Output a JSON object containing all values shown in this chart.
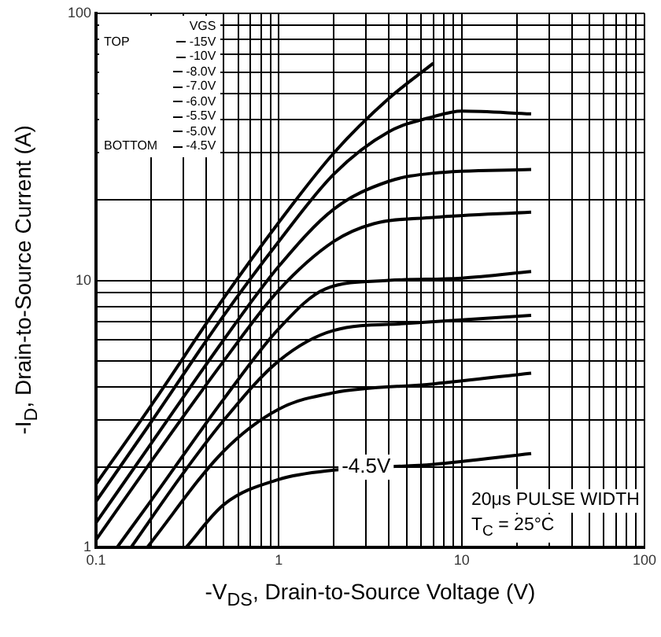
{
  "chart_data": {
    "type": "line",
    "xlabel": "-V$_{DS}$, Drain-to-Source Voltage (V)",
    "ylabel": "-I$_{D}$, Drain-to-Source Current (A)",
    "legend_title": "VGS",
    "legend": "top left",
    "log": "xy",
    "grid": true,
    "marker": "none",
    "line_style": "solid",
    "xlim": [
      0.1,
      100
    ],
    "ylim": [
      1,
      100
    ],
    "xticks": [
      0.1,
      {
        "value": 0.2,
        "label": null
      },
      {
        "value": 0.3,
        "label": null
      },
      {
        "value": 0.4,
        "label": null
      },
      {
        "value": 0.5,
        "label": null
      },
      {
        "value": 0.6,
        "label": null
      },
      {
        "value": 0.7,
        "label": null
      },
      {
        "value": 0.8,
        "label": null
      },
      {
        "value": 0.9,
        "label": null
      },
      1,
      {
        "value": 2,
        "label": null
      },
      {
        "value": 3,
        "label": null
      },
      {
        "value": 4,
        "label": null
      },
      {
        "value": 5,
        "label": null
      },
      {
        "value": 6,
        "label": null
      },
      {
        "value": 7,
        "label": null
      },
      {
        "value": 8,
        "label": null
      },
      {
        "value": 9,
        "label": null
      },
      10,
      {
        "value": 20,
        "label": null
      },
      {
        "value": 30,
        "label": null
      },
      {
        "value": 40,
        "label": null
      },
      {
        "value": 50,
        "label": null
      },
      {
        "value": 60,
        "label": null
      },
      {
        "value": 70,
        "label": null
      },
      {
        "value": 80,
        "label": null
      },
      {
        "value": 90,
        "label": null
      },
      100
    ],
    "yticks": [
      1,
      {
        "value": 2,
        "label": null
      },
      {
        "value": 3,
        "label": null
      },
      {
        "value": 4,
        "label": null
      },
      {
        "value": 5,
        "label": null
      },
      {
        "value": 6,
        "label": null
      },
      {
        "value": 7,
        "label": null
      },
      {
        "value": 8,
        "label": null
      },
      {
        "value": 9,
        "label": null
      },
      10,
      {
        "value": 20,
        "label": null
      },
      {
        "value": 30,
        "label": null
      },
      {
        "value": 40,
        "label": null
      },
      {
        "value": 50,
        "label": null
      },
      {
        "value": 60,
        "label": null
      },
      {
        "value": 70,
        "label": null
      },
      {
        "value": 80,
        "label": null
      },
      {
        "value": 90,
        "label": null
      },
      100
    ],
    "series": [
      {
        "name": "-15V",
        "color": "#000000",
        "x": [
          0.1,
          0.2,
          0.5,
          1,
          2,
          4,
          7
        ],
        "values": [
          1.73,
          3.4,
          8.6,
          16.5,
          30,
          48,
          65
        ]
      },
      {
        "name": "-10V",
        "color": "#000000",
        "x": [
          0.1,
          0.2,
          0.5,
          1,
          2,
          4,
          7,
          10,
          24
        ],
        "values": [
          1.49,
          2.95,
          7.4,
          14,
          25,
          36,
          41,
          43,
          42
        ]
      },
      {
        "name": "-8.0V",
        "color": "#000000",
        "x": [
          0.1,
          0.2,
          0.5,
          1,
          2,
          4,
          7,
          24
        ],
        "values": [
          1.24,
          2.45,
          6,
          11.3,
          18.5,
          23.5,
          25.2,
          26
        ]
      },
      {
        "name": "-7.0V",
        "color": "#000000",
        "x": [
          0.1,
          0.2,
          0.5,
          1,
          2,
          3.3,
          7,
          24
        ],
        "values": [
          1.07,
          2.1,
          5,
          9.2,
          14,
          16.3,
          17.2,
          18
        ]
      },
      {
        "name": "-6.0V",
        "color": "#000000",
        "x": [
          0.13,
          0.2,
          0.5,
          1,
          1.8,
          4,
          10,
          24
        ],
        "values": [
          1,
          1.5,
          3.6,
          6.6,
          9.3,
          10,
          10.2,
          10.8
        ]
      },
      {
        "name": "-5.5V",
        "color": "#000000",
        "x": [
          0.155,
          0.3,
          0.5,
          1,
          2,
          5,
          24
        ],
        "values": [
          1,
          1.9,
          3,
          5,
          6.5,
          6.9,
          7.4
        ]
      },
      {
        "name": "-5.0V",
        "color": "#000000",
        "x": [
          0.19,
          0.5,
          1,
          2,
          7,
          24
        ],
        "values": [
          1,
          2.3,
          3.3,
          3.8,
          4.1,
          4.5
        ]
      },
      {
        "name": "-4.5V",
        "color": "#000000",
        "x": [
          0.31,
          0.5,
          1,
          2,
          7,
          24
        ],
        "values": [
          1,
          1.45,
          1.8,
          1.95,
          2.05,
          2.25
        ]
      }
    ],
    "annotations": [
      "TOP",
      "BOTTOM",
      {
        "text": "-4.5V",
        "x": 3,
        "y": 2
      },
      "20μs PULSE WIDTH",
      "T$_{C}$ = 25°C"
    ]
  }
}
